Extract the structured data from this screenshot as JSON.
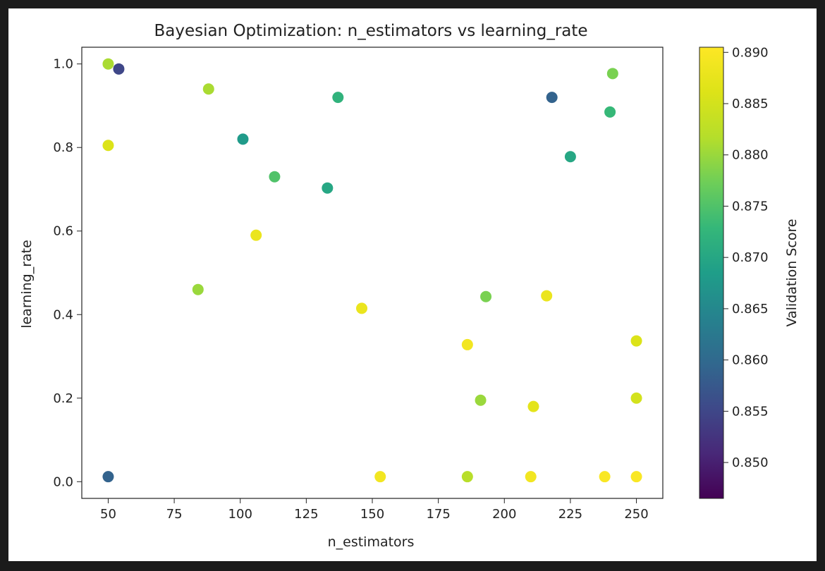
{
  "chart_data": {
    "type": "scatter",
    "title": "Bayesian Optimization: n_estimators vs learning_rate",
    "xlabel": "n_estimators",
    "ylabel": "learning_rate",
    "xlim": [
      40,
      260
    ],
    "ylim": [
      -0.04,
      1.04
    ],
    "xticks": [
      50,
      75,
      100,
      125,
      150,
      175,
      200,
      225,
      250
    ],
    "yticks": [
      0.0,
      0.2,
      0.4,
      0.6,
      0.8,
      1.0
    ],
    "xtick_labels": [
      "50",
      "75",
      "100",
      "125",
      "150",
      "175",
      "200",
      "225",
      "250"
    ],
    "ytick_labels": [
      "0.0",
      "0.2",
      "0.4",
      "0.6",
      "0.8",
      "1.0"
    ],
    "colormap": "viridis",
    "colorbar": {
      "label": "Validation Score",
      "range": [
        0.8465,
        0.8905
      ],
      "ticks": [
        0.85,
        0.855,
        0.86,
        0.865,
        0.87,
        0.875,
        0.88,
        0.885,
        0.89
      ],
      "tick_labels": [
        "0.850",
        "0.855",
        "0.860",
        "0.865",
        "0.870",
        "0.875",
        "0.880",
        "0.885",
        "0.890"
      ]
    },
    "points": [
      {
        "x": 50,
        "y": 1.0,
        "score": 0.881
      },
      {
        "x": 54,
        "y": 0.988,
        "score": 0.855
      },
      {
        "x": 50,
        "y": 0.805,
        "score": 0.886
      },
      {
        "x": 50,
        "y": 0.012,
        "score": 0.859
      },
      {
        "x": 84,
        "y": 0.46,
        "score": 0.88
      },
      {
        "x": 88,
        "y": 0.94,
        "score": 0.881
      },
      {
        "x": 101,
        "y": 0.82,
        "score": 0.868
      },
      {
        "x": 106,
        "y": 0.59,
        "score": 0.888
      },
      {
        "x": 113,
        "y": 0.73,
        "score": 0.875
      },
      {
        "x": 133,
        "y": 0.703,
        "score": 0.87
      },
      {
        "x": 137,
        "y": 0.92,
        "score": 0.872
      },
      {
        "x": 146,
        "y": 0.415,
        "score": 0.888
      },
      {
        "x": 153,
        "y": 0.012,
        "score": 0.889
      },
      {
        "x": 186,
        "y": 0.328,
        "score": 0.889
      },
      {
        "x": 186,
        "y": 0.012,
        "score": 0.882
      },
      {
        "x": 191,
        "y": 0.195,
        "score": 0.88
      },
      {
        "x": 193,
        "y": 0.443,
        "score": 0.878
      },
      {
        "x": 210,
        "y": 0.012,
        "score": 0.889
      },
      {
        "x": 211,
        "y": 0.18,
        "score": 0.887
      },
      {
        "x": 216,
        "y": 0.445,
        "score": 0.888
      },
      {
        "x": 218,
        "y": 0.92,
        "score": 0.859
      },
      {
        "x": 225,
        "y": 0.778,
        "score": 0.87
      },
      {
        "x": 238,
        "y": 0.012,
        "score": 0.89
      },
      {
        "x": 240,
        "y": 0.885,
        "score": 0.873
      },
      {
        "x": 241,
        "y": 0.977,
        "score": 0.878
      },
      {
        "x": 250,
        "y": 0.337,
        "score": 0.886
      },
      {
        "x": 250,
        "y": 0.2,
        "score": 0.885
      },
      {
        "x": 250,
        "y": 0.012,
        "score": 0.89
      }
    ]
  }
}
